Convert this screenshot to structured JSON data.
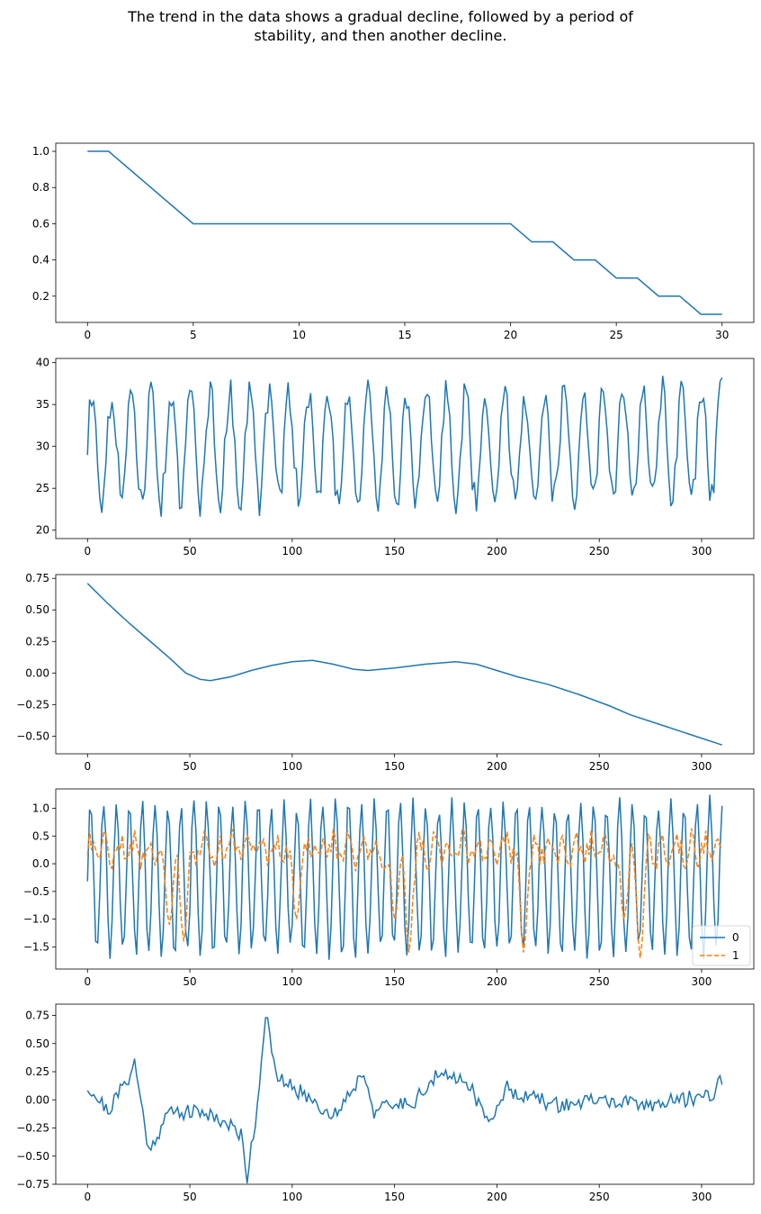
{
  "title_lines": [
    "The trend in the data shows a gradual decline, followed by a period of",
    "stability, and then another decline."
  ],
  "colors": {
    "series0": "#1f77b4",
    "series1": "#ff7f0e",
    "axes": "#000000"
  },
  "chart_data": [
    {
      "type": "line",
      "xlim": [
        -1.5,
        31.5
      ],
      "ylim": [
        0.055,
        1.045
      ],
      "xticks": [
        0,
        5,
        10,
        15,
        20,
        25,
        30
      ],
      "yticks": [
        0.2,
        0.4,
        0.6,
        0.8,
        1.0
      ],
      "xtick_labels": [
        "0",
        "5",
        "10",
        "15",
        "20",
        "25",
        "30"
      ],
      "ytick_labels": [
        "0.2",
        "0.4",
        "0.6",
        "0.8",
        "1.0"
      ],
      "grid": false,
      "series": [
        {
          "style": "solid",
          "x": [
            0,
            1,
            5,
            20,
            21,
            22,
            23,
            24,
            25,
            26,
            27,
            28,
            29,
            30
          ],
          "y": [
            1.0,
            1.0,
            0.6,
            0.6,
            0.5,
            0.5,
            0.4,
            0.4,
            0.3,
            0.3,
            0.2,
            0.2,
            0.1,
            0.1
          ]
        }
      ]
    },
    {
      "type": "line",
      "xlim": [
        -15.5,
        325.5
      ],
      "ylim": [
        19.0,
        40.5
      ],
      "xticks": [
        0,
        50,
        100,
        150,
        200,
        250,
        300
      ],
      "yticks": [
        20,
        25,
        30,
        35,
        40
      ],
      "xtick_labels": [
        "0",
        "50",
        "100",
        "150",
        "200",
        "250",
        "300"
      ],
      "ytick_labels": [
        "20",
        "25",
        "30",
        "35",
        "40"
      ],
      "grid": false,
      "generated": {
        "n": 311,
        "kind": "oscillation",
        "period": 9.6,
        "mid": 30.0,
        "amp": 6.5,
        "noise": 2.0,
        "min": 20.0,
        "max": 39.5
      }
    },
    {
      "type": "line",
      "xlim": [
        -15.5,
        325.5
      ],
      "ylim": [
        -0.64,
        0.78
      ],
      "xticks": [
        0,
        50,
        100,
        150,
        200,
        250,
        300
      ],
      "yticks": [
        -0.5,
        -0.25,
        0.0,
        0.25,
        0.5,
        0.75
      ],
      "xtick_labels": [
        "0",
        "50",
        "100",
        "150",
        "200",
        "250",
        "300"
      ],
      "ytick_labels": [
        "−0.50",
        "−0.25",
        "0.00",
        "0.25",
        "0.50",
        "0.75"
      ],
      "grid": false,
      "series": [
        {
          "style": "solid",
          "x": [
            0,
            10,
            20,
            30,
            40,
            48,
            55,
            60,
            70,
            80,
            90,
            100,
            110,
            120,
            130,
            137,
            150,
            165,
            180,
            190,
            200,
            210,
            225,
            240,
            255,
            265,
            280,
            295,
            310
          ],
          "y": [
            0.71,
            0.55,
            0.4,
            0.26,
            0.12,
            0.0,
            -0.05,
            -0.06,
            -0.03,
            0.02,
            0.06,
            0.09,
            0.1,
            0.07,
            0.03,
            0.02,
            0.04,
            0.07,
            0.09,
            0.07,
            0.02,
            -0.03,
            -0.09,
            -0.17,
            -0.26,
            -0.33,
            -0.41,
            -0.49,
            -0.57
          ]
        }
      ]
    },
    {
      "type": "line",
      "xlim": [
        -15.5,
        325.5
      ],
      "ylim": [
        -1.9,
        1.35
      ],
      "xticks": [
        0,
        50,
        100,
        150,
        200,
        250,
        300
      ],
      "yticks": [
        -1.5,
        -1.0,
        -0.5,
        0.0,
        0.5,
        1.0
      ],
      "xtick_labels": [
        "0",
        "50",
        "100",
        "150",
        "200",
        "250",
        "300"
      ],
      "ytick_labels": [
        "−1.5",
        "−1.0",
        "−0.5",
        "0.0",
        "0.5",
        "1.0"
      ],
      "grid": false,
      "legend": {
        "placement": "lower-right",
        "entries": [
          "0",
          "1"
        ]
      },
      "generated_series": [
        {
          "name": "0",
          "style": "solid",
          "n": 311,
          "kind": "oscillation",
          "period": 6.3,
          "mid": -0.25,
          "amp": 1.35,
          "min": -1.8,
          "max": 1.25
        },
        {
          "name": "1",
          "style": "dashed",
          "n": 311,
          "kind": "noisy-dips",
          "mid": 0.25,
          "noise": 0.22,
          "min": -1.75,
          "max": 0.9,
          "dips": [
            [
              40,
              -1.1
            ],
            [
              47,
              -1.4
            ],
            [
              102,
              -1.0
            ],
            [
              150,
              -1.0
            ],
            [
              157,
              -1.6
            ],
            [
              213,
              -1.6
            ],
            [
              262,
              -1.0
            ],
            [
              270,
              -1.7
            ]
          ]
        }
      ]
    },
    {
      "type": "line",
      "xlim": [
        -15.5,
        325.5
      ],
      "ylim": [
        -0.75,
        0.85
      ],
      "xticks": [
        0,
        50,
        100,
        150,
        200,
        250,
        300
      ],
      "yticks": [
        -0.75,
        -0.5,
        -0.25,
        0.0,
        0.25,
        0.5,
        0.75
      ],
      "xtick_labels": [
        "0",
        "50",
        "100",
        "150",
        "200",
        "250",
        "300"
      ],
      "ytick_labels": [
        "−0.75",
        "−0.50",
        "−0.25",
        "0.00",
        "0.25",
        "0.50",
        "0.75"
      ],
      "grid": false,
      "generated": {
        "n": 311,
        "kind": "smooth-noise",
        "noise": 0.07,
        "anchors": [
          [
            0,
            0.12
          ],
          [
            10,
            -0.1
          ],
          [
            20,
            0.2
          ],
          [
            23,
            0.33
          ],
          [
            30,
            -0.45
          ],
          [
            40,
            -0.1
          ],
          [
            60,
            -0.12
          ],
          [
            75,
            -0.3
          ],
          [
            78,
            -0.68
          ],
          [
            83,
            -0.05
          ],
          [
            87,
            0.79
          ],
          [
            92,
            0.2
          ],
          [
            110,
            0.0
          ],
          [
            120,
            -0.15
          ],
          [
            135,
            0.25
          ],
          [
            140,
            -0.1
          ],
          [
            160,
            0.0
          ],
          [
            170,
            0.2
          ],
          [
            185,
            0.2
          ],
          [
            195,
            -0.2
          ],
          [
            205,
            0.1
          ],
          [
            220,
            0.0
          ],
          [
            230,
            -0.05
          ],
          [
            250,
            0.0
          ],
          [
            270,
            -0.05
          ],
          [
            290,
            0.0
          ],
          [
            305,
            0.05
          ],
          [
            310,
            0.19
          ]
        ]
      }
    }
  ]
}
